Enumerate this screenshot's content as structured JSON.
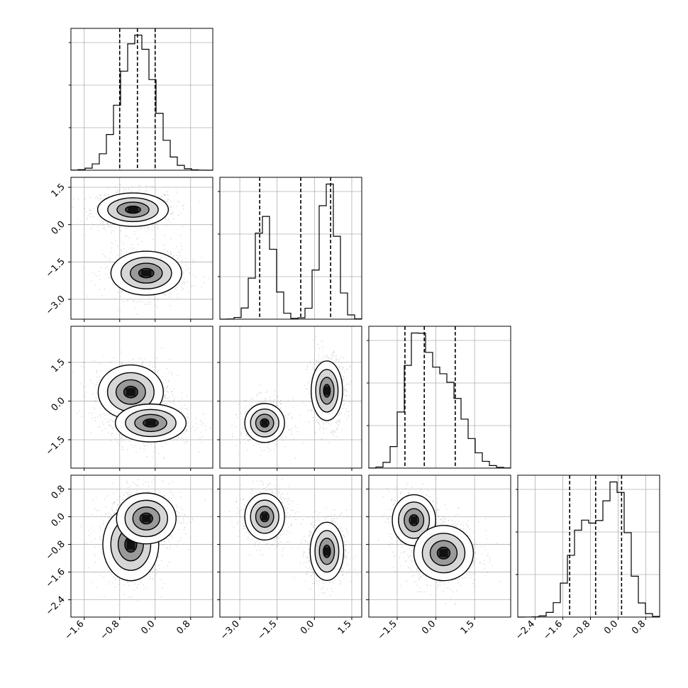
{
  "chart_data": {
    "type": "corner",
    "params": [
      {
        "range": [
          -1.9,
          1.3
        ],
        "ticks": [
          -1.6,
          -0.8,
          0.0,
          0.8
        ],
        "quantiles": [
          -0.8,
          -0.4,
          -0.0
        ],
        "hist_mixture": [
          {
            "w": 1,
            "mu": -0.4,
            "sd": 0.38
          }
        ]
      },
      {
        "range": [
          -3.8,
          1.9
        ],
        "ticks": [
          -3.0,
          -1.5,
          0.0,
          1.5
        ],
        "quantiles": [
          -2.2,
          -0.55,
          0.65
        ],
        "hist_mixture": [
          {
            "w": 0.45,
            "mu": -2.0,
            "sd": 0.38
          },
          {
            "w": 0.55,
            "mu": 0.55,
            "sd": 0.35
          }
        ]
      },
      {
        "range": [
          -2.6,
          2.9
        ],
        "ticks": [
          -1.5,
          0.0,
          1.5
        ],
        "quantiles": [
          -1.2,
          -0.45,
          0.75
        ],
        "hist_mixture": [
          {
            "w": 0.45,
            "mu": -0.8,
            "sd": 0.45
          },
          {
            "w": 0.55,
            "mu": 0.35,
            "sd": 0.7
          }
        ]
      },
      {
        "range": [
          -2.9,
          1.2
        ],
        "ticks": [
          -2.4,
          -1.6,
          -0.8,
          0.0,
          0.8
        ],
        "quantiles": [
          -1.4,
          -0.65,
          0.1
        ],
        "hist_mixture": [
          {
            "w": 0.45,
            "mu": -1.0,
            "sd": 0.4
          },
          {
            "w": 0.55,
            "mu": -0.05,
            "sd": 0.35
          }
        ]
      }
    ],
    "scatter_clusters": {
      "1-0": [
        {
          "cx": -0.5,
          "cy": 0.6,
          "sx": 0.38,
          "sy": 0.32,
          "w": 0.55
        },
        {
          "cx": -0.2,
          "cy": -1.95,
          "sx": 0.38,
          "sy": 0.42,
          "w": 0.45
        }
      ],
      "2-0": [
        {
          "cx": -0.55,
          "cy": 0.35,
          "sx": 0.35,
          "sy": 0.5,
          "w": 0.5
        },
        {
          "cx": -0.1,
          "cy": -0.85,
          "sx": 0.38,
          "sy": 0.35,
          "w": 0.5
        }
      ],
      "2-1": [
        {
          "cx": -2.0,
          "cy": -0.85,
          "sx": 0.38,
          "sy": 0.36,
          "w": 0.45
        },
        {
          "cx": 0.5,
          "cy": 0.4,
          "sx": 0.3,
          "sy": 0.55,
          "w": 0.55
        }
      ],
      "3-0": [
        {
          "cx": -0.55,
          "cy": -0.8,
          "sx": 0.3,
          "sy": 0.5,
          "w": 0.45
        },
        {
          "cx": -0.2,
          "cy": -0.05,
          "sx": 0.32,
          "sy": 0.35,
          "w": 0.55
        }
      ],
      "3-1": [
        {
          "cx": -2.0,
          "cy": 0.0,
          "sx": 0.38,
          "sy": 0.32,
          "w": 0.45
        },
        {
          "cx": 0.5,
          "cy": -1.0,
          "sx": 0.32,
          "sy": 0.4,
          "w": 0.55
        }
      ],
      "3-2": [
        {
          "cx": -0.85,
          "cy": -0.1,
          "sx": 0.4,
          "sy": 0.35,
          "w": 0.45
        },
        {
          "cx": 0.3,
          "cy": -1.05,
          "sx": 0.55,
          "sy": 0.38,
          "w": 0.55
        }
      ]
    }
  }
}
